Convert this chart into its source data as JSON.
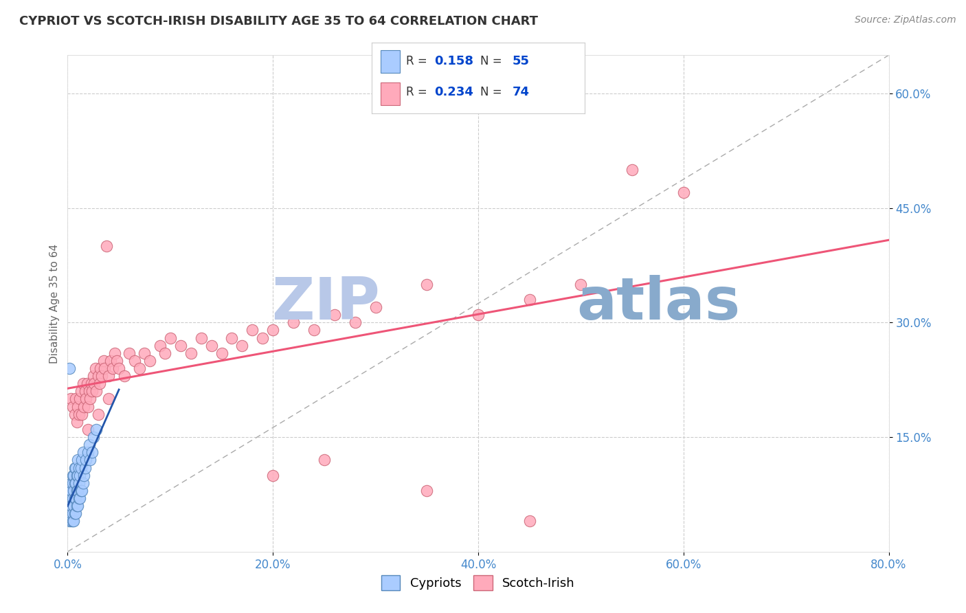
{
  "title": "CYPRIOT VS SCOTCH-IRISH DISABILITY AGE 35 TO 64 CORRELATION CHART",
  "source_text": "Source: ZipAtlas.com",
  "ylabel": "Disability Age 35 to 64",
  "xlim": [
    0.0,
    0.8
  ],
  "ylim": [
    0.0,
    0.65
  ],
  "xticks": [
    0.0,
    0.2,
    0.4,
    0.6,
    0.8
  ],
  "xticklabels": [
    "0.0%",
    "20.0%",
    "40.0%",
    "60.0%",
    "80.0%"
  ],
  "yticks": [
    0.15,
    0.3,
    0.45,
    0.6
  ],
  "yticklabels": [
    "15.0%",
    "30.0%",
    "45.0%",
    "60.0%"
  ],
  "grid_color": "#cccccc",
  "background_color": "#ffffff",
  "cypriot_color": "#aaccff",
  "scotch_irish_color": "#ffaabb",
  "cypriot_edge_color": "#5588bb",
  "scotch_irish_edge_color": "#cc6677",
  "cypriot_R": 0.158,
  "cypriot_N": 55,
  "scotch_irish_R": 0.234,
  "scotch_irish_N": 74,
  "cypriot_line_color": "#2255aa",
  "scotch_irish_line_color": "#ee5577",
  "watermark_zip_color": "#b8c8e8",
  "watermark_atlas_color": "#88aacc",
  "title_color": "#333333",
  "axis_tick_color": "#4488cc",
  "legend_R_color": "#0044cc",
  "cypriot_x": [
    0.001,
    0.002,
    0.002,
    0.003,
    0.003,
    0.003,
    0.004,
    0.004,
    0.004,
    0.004,
    0.005,
    0.005,
    0.005,
    0.005,
    0.005,
    0.006,
    0.006,
    0.006,
    0.006,
    0.007,
    0.007,
    0.007,
    0.007,
    0.008,
    0.008,
    0.008,
    0.008,
    0.009,
    0.009,
    0.009,
    0.01,
    0.01,
    0.01,
    0.01,
    0.011,
    0.011,
    0.011,
    0.012,
    0.012,
    0.013,
    0.013,
    0.014,
    0.014,
    0.015,
    0.015,
    0.016,
    0.017,
    0.018,
    0.02,
    0.021,
    0.022,
    0.025,
    0.028,
    0.002,
    0.024
  ],
  "cypriot_y": [
    0.05,
    0.04,
    0.07,
    0.05,
    0.06,
    0.08,
    0.04,
    0.06,
    0.08,
    0.09,
    0.04,
    0.05,
    0.07,
    0.09,
    0.1,
    0.04,
    0.06,
    0.08,
    0.1,
    0.05,
    0.07,
    0.09,
    0.11,
    0.05,
    0.07,
    0.09,
    0.11,
    0.06,
    0.08,
    0.1,
    0.06,
    0.08,
    0.1,
    0.12,
    0.07,
    0.09,
    0.11,
    0.07,
    0.1,
    0.08,
    0.11,
    0.08,
    0.12,
    0.09,
    0.13,
    0.1,
    0.11,
    0.12,
    0.13,
    0.14,
    0.12,
    0.15,
    0.16,
    0.24,
    0.13
  ],
  "scotch_irish_x": [
    0.003,
    0.005,
    0.007,
    0.008,
    0.009,
    0.01,
    0.011,
    0.012,
    0.013,
    0.014,
    0.015,
    0.016,
    0.017,
    0.018,
    0.019,
    0.02,
    0.021,
    0.022,
    0.023,
    0.024,
    0.025,
    0.026,
    0.027,
    0.028,
    0.03,
    0.031,
    0.032,
    0.033,
    0.035,
    0.036,
    0.038,
    0.04,
    0.042,
    0.044,
    0.046,
    0.048,
    0.05,
    0.055,
    0.06,
    0.065,
    0.07,
    0.075,
    0.08,
    0.09,
    0.095,
    0.1,
    0.11,
    0.12,
    0.13,
    0.14,
    0.15,
    0.16,
    0.17,
    0.18,
    0.19,
    0.2,
    0.22,
    0.24,
    0.26,
    0.28,
    0.3,
    0.35,
    0.4,
    0.45,
    0.5,
    0.55,
    0.6,
    0.02,
    0.03,
    0.04,
    0.2,
    0.25,
    0.35,
    0.45
  ],
  "scotch_irish_y": [
    0.2,
    0.19,
    0.18,
    0.2,
    0.17,
    0.19,
    0.18,
    0.2,
    0.21,
    0.18,
    0.22,
    0.19,
    0.21,
    0.2,
    0.22,
    0.19,
    0.21,
    0.2,
    0.22,
    0.21,
    0.23,
    0.22,
    0.24,
    0.21,
    0.23,
    0.22,
    0.24,
    0.23,
    0.25,
    0.24,
    0.4,
    0.23,
    0.25,
    0.24,
    0.26,
    0.25,
    0.24,
    0.23,
    0.26,
    0.25,
    0.24,
    0.26,
    0.25,
    0.27,
    0.26,
    0.28,
    0.27,
    0.26,
    0.28,
    0.27,
    0.26,
    0.28,
    0.27,
    0.29,
    0.28,
    0.29,
    0.3,
    0.29,
    0.31,
    0.3,
    0.32,
    0.35,
    0.31,
    0.33,
    0.35,
    0.5,
    0.47,
    0.16,
    0.18,
    0.2,
    0.1,
    0.12,
    0.08,
    0.04
  ]
}
